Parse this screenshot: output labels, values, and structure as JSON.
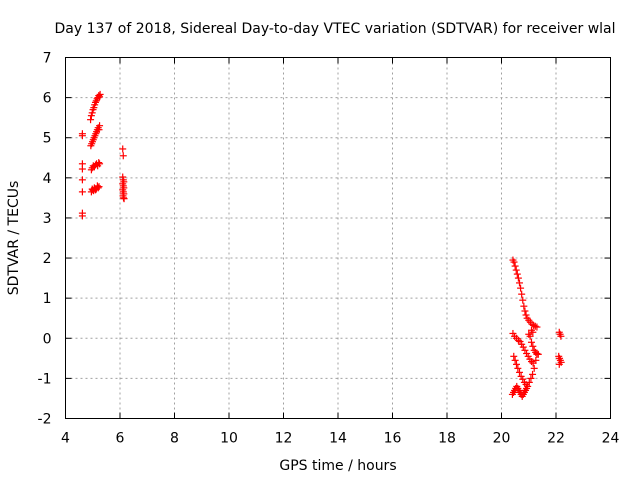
{
  "chart_data": {
    "type": "scatter",
    "title": "Day 137 of 2018, Sidereal Day-to-day VTEC variation (SDTVAR) for receiver wlal",
    "xlabel": "GPS time / hours",
    "ylabel": "SDTVAR / TECUs",
    "xlim": [
      4,
      24
    ],
    "ylim": [
      -2,
      7
    ],
    "xticks": [
      "4",
      "6",
      "8",
      "10",
      "12",
      "14",
      "16",
      "18",
      "20",
      "22",
      "24"
    ],
    "yticks": [
      "-2",
      "-1",
      "0",
      "1",
      "2",
      "3",
      "4",
      "5",
      "6",
      "7"
    ],
    "grid": true,
    "marker": "+",
    "marker_color": "#ff0000",
    "series": [
      {
        "name": "SDTVAR",
        "points": [
          [
            4.62,
            3.05
          ],
          [
            4.62,
            3.12
          ],
          [
            4.62,
            3.65
          ],
          [
            4.62,
            3.95
          ],
          [
            4.62,
            4.22
          ],
          [
            4.62,
            4.35
          ],
          [
            4.62,
            5.05
          ],
          [
            4.62,
            5.1
          ],
          [
            4.95,
            3.65
          ],
          [
            4.98,
            3.72
          ],
          [
            5.0,
            3.7
          ],
          [
            5.03,
            3.68
          ],
          [
            5.06,
            3.75
          ],
          [
            5.1,
            3.7
          ],
          [
            5.13,
            3.72
          ],
          [
            5.17,
            3.8
          ],
          [
            5.2,
            3.75
          ],
          [
            5.23,
            3.78
          ],
          [
            4.95,
            4.2
          ],
          [
            4.98,
            4.25
          ],
          [
            5.02,
            4.3
          ],
          [
            5.06,
            4.28
          ],
          [
            5.1,
            4.32
          ],
          [
            5.14,
            4.35
          ],
          [
            5.18,
            4.3
          ],
          [
            5.22,
            4.38
          ],
          [
            5.25,
            4.35
          ],
          [
            4.93,
            4.8
          ],
          [
            4.96,
            4.85
          ],
          [
            4.99,
            4.9
          ],
          [
            5.02,
            4.95
          ],
          [
            5.05,
            5.0
          ],
          [
            5.08,
            5.05
          ],
          [
            5.11,
            5.1
          ],
          [
            5.14,
            5.15
          ],
          [
            5.17,
            5.2
          ],
          [
            5.2,
            5.25
          ],
          [
            5.23,
            5.2
          ],
          [
            5.25,
            5.3
          ],
          [
            4.92,
            5.45
          ],
          [
            4.95,
            5.55
          ],
          [
            4.98,
            5.62
          ],
          [
            5.01,
            5.7
          ],
          [
            5.04,
            5.75
          ],
          [
            5.07,
            5.82
          ],
          [
            5.1,
            5.88
          ],
          [
            5.13,
            5.92
          ],
          [
            5.16,
            5.97
          ],
          [
            5.19,
            6.0
          ],
          [
            5.22,
            6.05
          ],
          [
            5.25,
            6.02
          ],
          [
            5.27,
            6.08
          ],
          [
            6.1,
            4.72
          ],
          [
            6.12,
            4.55
          ],
          [
            6.1,
            4.02
          ],
          [
            6.12,
            3.95
          ],
          [
            6.14,
            3.9
          ],
          [
            6.1,
            3.85
          ],
          [
            6.12,
            3.8
          ],
          [
            6.14,
            3.75
          ],
          [
            6.1,
            3.7
          ],
          [
            6.12,
            3.65
          ],
          [
            6.14,
            3.6
          ],
          [
            6.11,
            3.55
          ],
          [
            6.13,
            3.5
          ],
          [
            6.15,
            3.48
          ],
          [
            20.42,
            1.95
          ],
          [
            20.46,
            1.9
          ],
          [
            20.5,
            1.8
          ],
          [
            20.54,
            1.7
          ],
          [
            20.58,
            1.6
          ],
          [
            20.62,
            1.5
          ],
          [
            20.66,
            1.38
          ],
          [
            20.7,
            1.25
          ],
          [
            20.74,
            1.1
          ],
          [
            20.78,
            0.95
          ],
          [
            20.82,
            0.8
          ],
          [
            20.86,
            0.68
          ],
          [
            20.9,
            0.58
          ],
          [
            20.94,
            0.5
          ],
          [
            21.0,
            0.45
          ],
          [
            21.06,
            0.4
          ],
          [
            21.12,
            0.35
          ],
          [
            21.18,
            0.32
          ],
          [
            21.24,
            0.3
          ],
          [
            21.3,
            0.28
          ],
          [
            20.42,
            0.12
          ],
          [
            20.48,
            0.05
          ],
          [
            20.55,
            0.0
          ],
          [
            20.62,
            -0.05
          ],
          [
            20.68,
            -0.08
          ],
          [
            20.74,
            -0.15
          ],
          [
            20.8,
            -0.22
          ],
          [
            20.86,
            -0.3
          ],
          [
            20.92,
            -0.38
          ],
          [
            20.98,
            -0.45
          ],
          [
            21.04,
            -0.52
          ],
          [
            21.1,
            -0.58
          ],
          [
            21.16,
            -0.62
          ],
          [
            20.45,
            -0.45
          ],
          [
            20.5,
            -0.55
          ],
          [
            20.55,
            -0.65
          ],
          [
            20.6,
            -0.75
          ],
          [
            20.66,
            -0.85
          ],
          [
            20.72,
            -0.95
          ],
          [
            20.78,
            -1.02
          ],
          [
            20.84,
            -1.1
          ],
          [
            20.9,
            -1.15
          ],
          [
            20.96,
            -1.2
          ],
          [
            21.02,
            -1.1
          ],
          [
            21.08,
            -1.0
          ],
          [
            21.14,
            -0.9
          ],
          [
            21.2,
            -0.75
          ],
          [
            21.26,
            -0.55
          ],
          [
            21.3,
            -0.4
          ],
          [
            20.4,
            -1.4
          ],
          [
            20.44,
            -1.35
          ],
          [
            20.48,
            -1.3
          ],
          [
            20.52,
            -1.25
          ],
          [
            20.56,
            -1.2
          ],
          [
            20.6,
            -1.25
          ],
          [
            20.64,
            -1.3
          ],
          [
            20.68,
            -1.35
          ],
          [
            20.72,
            -1.4
          ],
          [
            20.76,
            -1.45
          ],
          [
            20.8,
            -1.4
          ],
          [
            20.84,
            -1.35
          ],
          [
            20.88,
            -1.3
          ],
          [
            20.92,
            -1.25
          ],
          [
            21.0,
            0.1
          ],
          [
            21.05,
            0.05
          ],
          [
            21.1,
            -0.1
          ],
          [
            21.15,
            -0.2
          ],
          [
            21.2,
            -0.3
          ],
          [
            21.25,
            -0.35
          ],
          [
            21.3,
            -0.38
          ],
          [
            21.35,
            -0.4
          ],
          [
            21.1,
            0.2
          ],
          [
            21.15,
            0.15
          ],
          [
            22.12,
            0.15
          ],
          [
            22.15,
            0.1
          ],
          [
            22.18,
            0.05
          ],
          [
            22.1,
            -0.45
          ],
          [
            22.13,
            -0.5
          ],
          [
            22.16,
            -0.55
          ],
          [
            22.19,
            -0.6
          ],
          [
            22.12,
            -0.65
          ]
        ]
      }
    ]
  }
}
